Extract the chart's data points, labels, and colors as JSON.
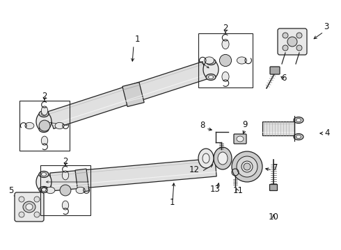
{
  "background_color": "#ffffff",
  "fig_width": 4.9,
  "fig_height": 3.6,
  "dpi": 100,
  "line_color": "#222222",
  "fill_light": "#e8e8e8",
  "fill_mid": "#cccccc",
  "fill_dark": "#aaaaaa"
}
